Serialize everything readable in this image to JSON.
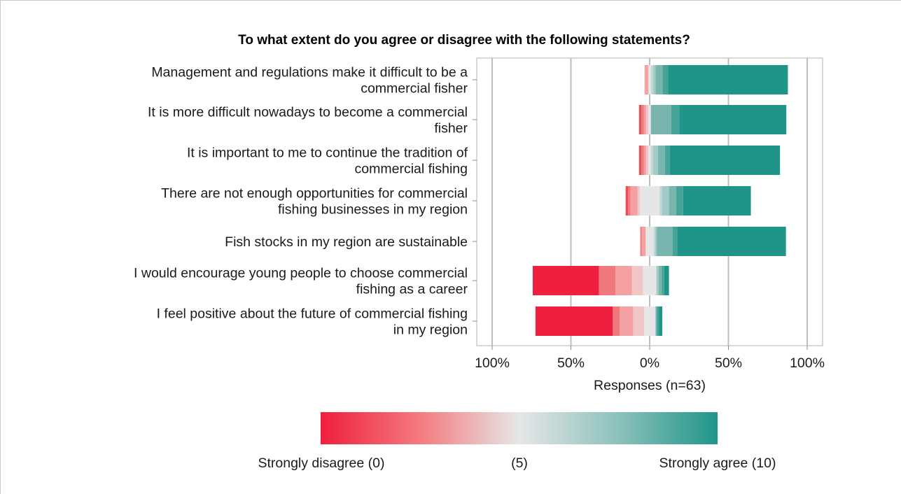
{
  "chart_data": {
    "type": "bar",
    "subtype": "diverging-stacked-horizontal",
    "title": "To what extent do you agree or disagree with the following statements?",
    "xlabel": "Responses (n=63)",
    "ylabel": "",
    "xlim": [
      -100,
      100
    ],
    "x_ticks": [
      -100,
      -50,
      0,
      50,
      100
    ],
    "x_tick_labels": [
      "100%",
      "50%",
      "0%",
      "50%",
      "100%"
    ],
    "grid": true,
    "scale_levels": [
      0,
      1,
      2,
      3,
      4,
      5,
      6,
      7,
      8,
      9,
      10
    ],
    "level_colors": [
      "#ee1f3f",
      "#ef4b55",
      "#f1787c",
      "#f3a1a2",
      "#f0c6c6",
      "#e6e6e6",
      "#c3d9d7",
      "#a1cbc6",
      "#78b5ae",
      "#46a398",
      "#1f9588"
    ],
    "categories": [
      [
        "Management and regulations make it difficult to be a",
        "commercial fisher"
      ],
      [
        "It is more difficult nowadays to become a commercial",
        "fisher"
      ],
      [
        "It is important to me to continue the tradition of",
        "commercial fishing"
      ],
      [
        "There are not enough opportunities for commercial",
        "fishing businesses in my region"
      ],
      [
        "Fish stocks in my region are sustainable"
      ],
      [
        "I would encourage young people to choose commercial",
        "fishing as a career"
      ],
      [
        "I feel positive about the future of commercial fishing",
        "in my region"
      ]
    ],
    "percentages_by_level": [
      [
        0,
        0,
        0,
        2.5,
        0,
        1.5,
        1.5,
        1.5,
        4.5,
        3.5,
        76
      ],
      [
        0,
        1.5,
        1.5,
        1.5,
        1.5,
        1.5,
        0,
        0,
        13,
        5,
        68
      ],
      [
        0,
        1.5,
        1.5,
        1.5,
        1.5,
        1.5,
        1.5,
        3,
        4.5,
        3,
        70
      ],
      [
        0,
        1.5,
        1.5,
        4.5,
        1.5,
        12.5,
        1.5,
        4.5,
        4.5,
        4.5,
        43
      ],
      [
        0,
        0,
        1,
        2.5,
        0,
        5,
        1,
        1,
        10,
        3,
        69
      ],
      [
        42,
        0,
        10.5,
        10.5,
        7,
        8.5,
        0,
        1.5,
        2,
        1.5,
        3
      ],
      [
        49,
        0,
        4.5,
        8.5,
        7,
        7,
        0,
        0.5,
        0.5,
        1.5,
        2
      ]
    ],
    "legend": {
      "placement": "bottom",
      "labels": [
        "Strongly disagree (0)",
        "(5)",
        "Strongly agree (10)"
      ]
    }
  }
}
